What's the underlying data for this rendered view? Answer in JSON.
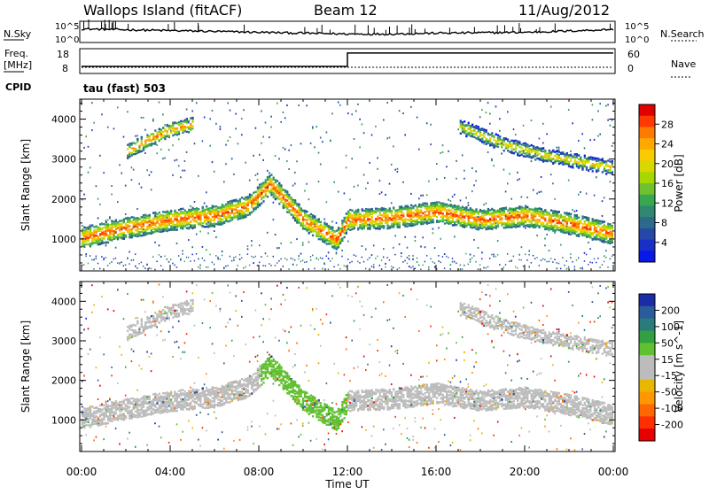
{
  "header": {
    "station": "Wallops Island (fitACF)",
    "beam": "Beam 12",
    "date": "11/Aug/2012"
  },
  "noise_panel": {
    "left_label": "N.Sky",
    "right_label": "N.Search",
    "tick_top": "10^5",
    "tick_bottom": "10^0"
  },
  "freq_panel": {
    "label_line1": "Freq.",
    "label_line2": "[MHz]",
    "left_ticks": [
      "18",
      "8"
    ],
    "right_ticks": [
      "60",
      "0"
    ],
    "right_label": "Nave",
    "cpid_label": "CPID",
    "cpid_value": "tau (fast) 503"
  },
  "colorbar_power": {
    "label": "Power [dB]",
    "ticks": [
      "28",
      "24",
      "20",
      "16",
      "12",
      "8",
      "4"
    ],
    "colors": [
      "#e00000",
      "#ff3a00",
      "#ff7a00",
      "#ffa800",
      "#f8cc00",
      "#d8d800",
      "#a6d800",
      "#70c030",
      "#38a850",
      "#308870",
      "#2c6a8c",
      "#2648a8",
      "#1830c8",
      "#0818e8"
    ]
  },
  "colorbar_velocity": {
    "label": "Velocity [m s^-1]",
    "ticks": [
      "200",
      "100",
      "50",
      "15",
      "-15",
      "-50",
      "-100",
      "-200"
    ],
    "colors": [
      "#1c2ca8",
      "#2a5c9c",
      "#2a7c7c",
      "#30a040",
      "#60c030",
      "#bcbcbc",
      "#bcbcbc",
      "#e8b800",
      "#ff9800",
      "#ff6800",
      "#ff3000",
      "#e80000"
    ]
  },
  "axes": {
    "ylabel": "Slant Range [km]",
    "yticks": [
      "4000",
      "3000",
      "2000",
      "1000"
    ],
    "xticks": [
      "00:00",
      "04:00",
      "08:00",
      "12:00",
      "16:00",
      "20:00",
      "00:00"
    ],
    "xlabel": "Time UT"
  },
  "chart_data": [
    {
      "type": "line",
      "name": "noise",
      "title": "",
      "xlabel": "Time UT",
      "ylabel": "N.Sky",
      "x_hours": [
        0,
        2,
        4,
        6,
        8,
        10,
        12,
        14,
        16,
        18,
        20,
        22,
        24
      ],
      "series": [
        {
          "values": [
            3.2,
            3.0,
            2.8,
            2.6,
            2.4,
            2.2,
            2.0,
            2.0,
            2.2,
            2.3,
            2.4,
            2.7,
            3.1
          ]
        }
      ],
      "ylim": [
        0,
        5
      ],
      "log_scale": true
    },
    {
      "type": "line",
      "name": "frequency",
      "title": "",
      "xlabel": "Time UT",
      "ylabel": "Freq. [MHz]",
      "x_hours": [
        0,
        12,
        12,
        24
      ],
      "series": [
        {
          "values": [
            10.5,
            10.5,
            16.8,
            16.8
          ]
        }
      ],
      "ylim": [
        8,
        18
      ]
    },
    {
      "type": "heatmap",
      "name": "power",
      "title": "",
      "xlabel": "Time UT",
      "ylabel": "Slant Range [km]",
      "xlim_hours": [
        0,
        24
      ],
      "ylim_km": [
        200,
        4500
      ],
      "value_range_db": [
        0,
        30
      ],
      "ridges": [
        {
          "x_hours": [
            0,
            2,
            4,
            6,
            7.5,
            8.5,
            10,
            11.5,
            12,
            14,
            16,
            18,
            20,
            22,
            24
          ],
          "range_km": [
            1050,
            1300,
            1500,
            1600,
            1850,
            2400,
            1500,
            1000,
            1500,
            1550,
            1700,
            1500,
            1600,
            1400,
            1150
          ],
          "peak_db": 28
        },
        {
          "x_hours": [
            2,
            3,
            4,
            5
          ],
          "range_km": [
            3200,
            3500,
            3750,
            3900
          ],
          "peak_db": 26
        },
        {
          "x_hours": [
            17,
            19,
            21,
            23,
            24
          ],
          "range_km": [
            3850,
            3400,
            3100,
            2900,
            2800
          ],
          "peak_db": 22
        }
      ]
    },
    {
      "type": "heatmap",
      "name": "velocity",
      "title": "",
      "xlabel": "Time UT",
      "ylabel": "Slant Range [km]",
      "xlim_hours": [
        0,
        24
      ],
      "ylim_km": [
        200,
        4500
      ],
      "value_range_ms": [
        -200,
        200
      ],
      "dominant": "low velocity (-15 to 15 m/s) along the ground-scatter ridge; 50 m/s band between 08:00 and 12:00"
    }
  ]
}
